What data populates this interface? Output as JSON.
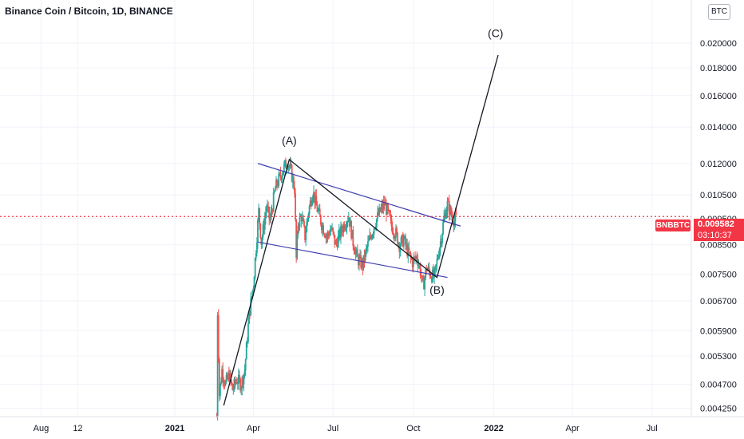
{
  "header": {
    "title": "Binance Coin / Bitcoin, 1D, BINANCE"
  },
  "currency_badge": "BTC",
  "price_label": {
    "symbol": "BNBBTC",
    "price": "0.009582",
    "countdown": "03:10:37"
  },
  "colors": {
    "up": "#26a69a",
    "down": "#ef5350",
    "trendline": "#3f3fb0",
    "price_line": "#f23645",
    "wave": "#131722"
  },
  "chart_data": {
    "type": "candlestick",
    "title": "Binance Coin / Bitcoin, 1D, BINANCE",
    "y_scale": "log",
    "ylim": [
      0.0041,
      0.024
    ],
    "y_ticks": [
      "0.020000",
      "0.018000",
      "0.016000",
      "0.014000",
      "0.012000",
      "0.010500",
      "0.009500",
      "0.008500",
      "0.007500",
      "0.006700",
      "0.005900",
      "0.005300",
      "0.004700",
      "0.004250"
    ],
    "x_ticks": [
      {
        "label": "Aug",
        "date": "2020-08-01"
      },
      {
        "label": "12",
        "date": "2020-09-12"
      },
      {
        "label": "2021",
        "date": "2021-01-01",
        "bold": true
      },
      {
        "label": "Apr",
        "date": "2021-04-01"
      },
      {
        "label": "Jul",
        "date": "2021-07-01"
      },
      {
        "label": "Oct",
        "date": "2021-10-01"
      },
      {
        "label": "2022",
        "date": "2022-01-01",
        "bold": true
      },
      {
        "label": "Apr",
        "date": "2022-04-01"
      },
      {
        "label": "Jul",
        "date": "2022-07-01"
      }
    ],
    "xlim": [
      "2020-06-15",
      "2022-08-15"
    ],
    "last_price": 0.009582,
    "price_path": [
      [
        "2021-02-18",
        0.0041
      ],
      [
        "2021-02-19",
        0.0064
      ],
      [
        "2021-02-21",
        0.0045
      ],
      [
        "2021-02-24",
        0.005
      ],
      [
        "2021-02-28",
        0.0047
      ],
      [
        "2021-03-04",
        0.0049
      ],
      [
        "2021-03-08",
        0.0046
      ],
      [
        "2021-03-13",
        0.0048
      ],
      [
        "2021-03-18",
        0.0047
      ],
      [
        "2021-03-22",
        0.005
      ],
      [
        "2021-03-27",
        0.0063
      ],
      [
        "2021-04-01",
        0.0072
      ],
      [
        "2021-04-07",
        0.0098
      ],
      [
        "2021-04-10",
        0.0086
      ],
      [
        "2021-04-16",
        0.01
      ],
      [
        "2021-04-20",
        0.0094
      ],
      [
        "2021-04-26",
        0.0108
      ],
      [
        "2021-05-01",
        0.0113
      ],
      [
        "2021-05-06",
        0.0118
      ],
      [
        "2021-05-10",
        0.0121
      ],
      [
        "2021-05-14",
        0.0116
      ],
      [
        "2021-05-18",
        0.0108
      ],
      [
        "2021-05-20",
        0.008
      ],
      [
        "2021-05-22",
        0.0093
      ],
      [
        "2021-05-26",
        0.0096
      ],
      [
        "2021-05-30",
        0.0088
      ],
      [
        "2021-06-03",
        0.0098
      ],
      [
        "2021-06-08",
        0.0107
      ],
      [
        "2021-06-12",
        0.01
      ],
      [
        "2021-06-18",
        0.0093
      ],
      [
        "2021-06-24",
        0.0088
      ],
      [
        "2021-06-29",
        0.0091
      ],
      [
        "2021-07-04",
        0.0085
      ],
      [
        "2021-07-09",
        0.0089
      ],
      [
        "2021-07-14",
        0.0093
      ],
      [
        "2021-07-19",
        0.0096
      ],
      [
        "2021-07-24",
        0.0086
      ],
      [
        "2021-07-29",
        0.008
      ],
      [
        "2021-08-04",
        0.0078
      ],
      [
        "2021-08-09",
        0.0084
      ],
      [
        "2021-08-14",
        0.0089
      ],
      [
        "2021-08-19",
        0.0094
      ],
      [
        "2021-08-24",
        0.0098
      ],
      [
        "2021-08-29",
        0.0101
      ],
      [
        "2021-09-02",
        0.0097
      ],
      [
        "2021-09-06",
        0.0092
      ],
      [
        "2021-09-11",
        0.0089
      ],
      [
        "2021-09-15",
        0.0085
      ],
      [
        "2021-09-20",
        0.0087
      ],
      [
        "2021-09-25",
        0.0082
      ],
      [
        "2021-09-30",
        0.0079
      ],
      [
        "2021-10-05",
        0.0081
      ],
      [
        "2021-10-09",
        0.0076
      ],
      [
        "2021-10-12",
        0.0071
      ],
      [
        "2021-10-16",
        0.0077
      ],
      [
        "2021-10-21",
        0.0075
      ],
      [
        "2021-10-25",
        0.0074
      ],
      [
        "2021-10-29",
        0.0081
      ],
      [
        "2021-11-02",
        0.0088
      ],
      [
        "2021-11-05",
        0.0095
      ],
      [
        "2021-11-09",
        0.0101
      ],
      [
        "2021-11-13",
        0.0097
      ],
      [
        "2021-11-17",
        0.0094
      ],
      [
        "2021-11-20",
        0.009582
      ]
    ],
    "annotations": {
      "waves": [
        {
          "label": "(A)",
          "date": "2021-05-12",
          "price": 0.013
        },
        {
          "label": "(B)",
          "date": "2021-10-28",
          "price": 0.0069
        },
        {
          "label": "(C)",
          "date": "2022-01-03",
          "price": 0.0205
        }
      ],
      "wave_path": [
        [
          "2021-02-26",
          0.0043
        ],
        [
          "2021-05-12",
          0.0122
        ],
        [
          "2021-10-28",
          0.0074
        ],
        [
          "2022-01-06",
          0.019
        ]
      ],
      "trendlines": [
        [
          [
            "2021-04-06",
            0.012
          ],
          [
            "2021-11-24",
            0.0092
          ]
        ],
        [
          [
            "2021-04-06",
            0.0086
          ],
          [
            "2021-11-09",
            0.0074
          ]
        ]
      ]
    }
  }
}
